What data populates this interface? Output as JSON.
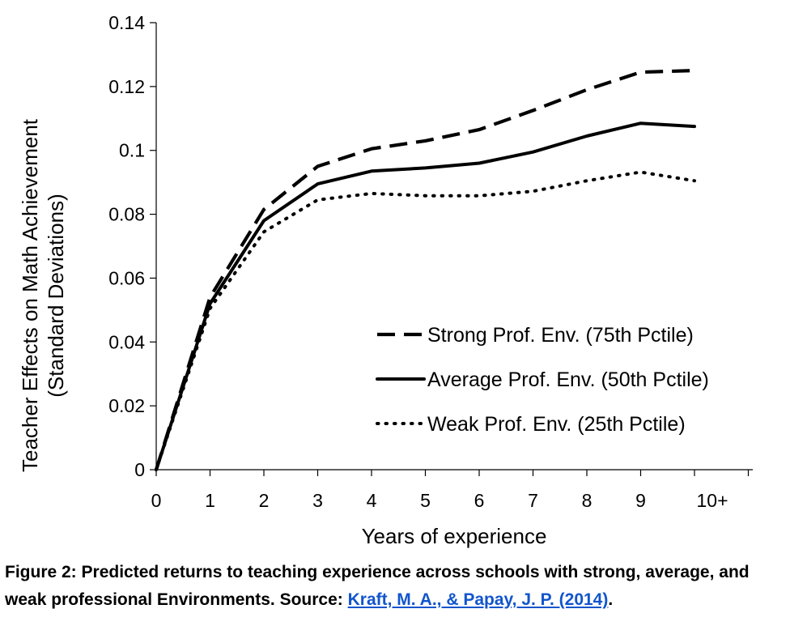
{
  "chart_data": {
    "type": "line",
    "categories": [
      "0",
      "1",
      "2",
      "3",
      "4",
      "5",
      "6",
      "7",
      "8",
      "9",
      "10+"
    ],
    "series": [
      {
        "name": "Strong Prof. Env. (75th Pctile)",
        "style": "dashed",
        "values": [
          0,
          0.054,
          0.0815,
          0.095,
          0.1005,
          0.103,
          0.1065,
          0.1125,
          0.119,
          0.1245,
          0.125
        ]
      },
      {
        "name": "Average Prof. Env. (50th Pctile)",
        "style": "solid",
        "values": [
          0,
          0.052,
          0.078,
          0.0895,
          0.0935,
          0.0945,
          0.096,
          0.0995,
          0.1045,
          0.1085,
          0.1075
        ]
      },
      {
        "name": "Weak Prof. Env. (25th Pctile)",
        "style": "dotted",
        "values": [
          0,
          0.0505,
          0.0745,
          0.0845,
          0.0865,
          0.0858,
          0.0858,
          0.0872,
          0.0905,
          0.0932,
          0.0905
        ]
      }
    ],
    "y_ticks": [
      "0",
      "0.02",
      "0.04",
      "0.06",
      "0.08",
      "0.1",
      "0.12",
      "0.14"
    ],
    "ylim": [
      0,
      0.14
    ],
    "xlabel": "Years of experience",
    "ylabel_line1": "Teacher Effects on Math Achievement",
    "ylabel_line2": "(Standard Deviations)",
    "grid": false,
    "legend_position": "bottom-right",
    "line_color": "#000000"
  },
  "caption": {
    "text": "Figure 2: Predicted returns to teaching experience across schools with strong, average, and weak professional Environments. Source: ",
    "link_text": "Kraft, M. A., & Papay, J. P. (2014)",
    "tail": ".",
    "link_color": "#1155cc"
  }
}
